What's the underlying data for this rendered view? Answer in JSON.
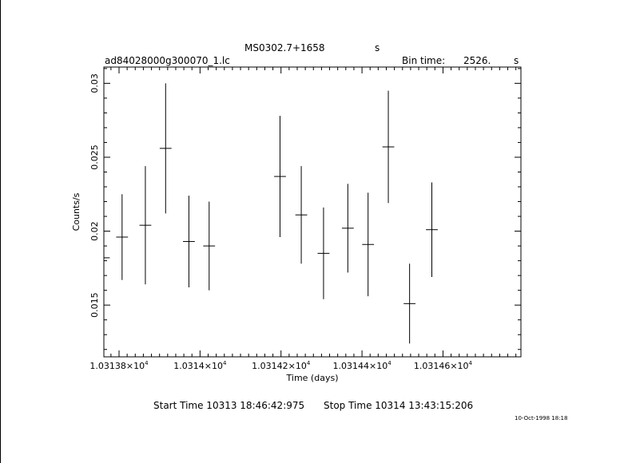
{
  "header": {
    "object": "MS0302.7+1658",
    "object_unit": "s",
    "file": "ad84028000g300070_1.lc",
    "bin_label": "Bin time:",
    "bin_value": "2526.",
    "bin_unit": "s"
  },
  "footer": {
    "start": "Start Time 10313  18:46:42:975",
    "stop": "Stop Time 10314  13:43:15:206",
    "stamp": "10-Oct-1998 18:18"
  },
  "chart_data": {
    "type": "scatter",
    "title": "MS0302.7+1658",
    "xlabel": "Time (days)",
    "ylabel": "Counts/s",
    "xlim": [
      10313.7625,
      10314.7925
    ],
    "ylim": [
      0.0115,
      0.0311
    ],
    "x_ticks_major": [
      10313.8,
      10314.0,
      10314.2,
      10314.4,
      10314.6
    ],
    "x_tick_labels": [
      {
        "mantissa": "1.03138",
        "exp": "4"
      },
      {
        "mantissa": "1.0314",
        "exp": "4"
      },
      {
        "mantissa": "1.03142",
        "exp": "4"
      },
      {
        "mantissa": "1.03144",
        "exp": "4"
      },
      {
        "mantissa": "1.03146",
        "exp": "4"
      }
    ],
    "y_ticks_major": [
      0.015,
      0.02,
      0.025,
      0.03
    ],
    "y_tick_labels": [
      "0.015",
      "0.02",
      "0.025",
      "0.03"
    ],
    "series": [
      {
        "points": [
          {
            "x": 10313.7625,
            "xerr": 0.0146,
            "y": 0.0182,
            "yerr": 0.0028
          },
          {
            "x": 10313.8075,
            "xerr": 0.0146,
            "y": 0.0196,
            "yerr": 0.0029
          },
          {
            "x": 10313.865,
            "xerr": 0.0146,
            "y": 0.0204,
            "yerr": 0.004
          },
          {
            "x": 10313.915,
            "xerr": 0.0146,
            "y": 0.0256,
            "yerr": 0.0044
          },
          {
            "x": 10313.9725,
            "xerr": 0.0146,
            "y": 0.0193,
            "yerr": 0.0031
          },
          {
            "x": 10314.0225,
            "xerr": 0.0146,
            "y": 0.019,
            "yerr": 0.003
          },
          {
            "x": 10314.1975,
            "xerr": 0.0146,
            "y": 0.0237,
            "yerr": 0.0041
          },
          {
            "x": 10314.25,
            "xerr": 0.0146,
            "y": 0.0211,
            "yerr": 0.0033
          },
          {
            "x": 10314.305,
            "xerr": 0.0146,
            "y": 0.0185,
            "yerr": 0.0031
          },
          {
            "x": 10314.365,
            "xerr": 0.0146,
            "y": 0.0202,
            "yerr": 0.003
          },
          {
            "x": 10314.415,
            "xerr": 0.0146,
            "y": 0.0191,
            "yerr": 0.0035
          },
          {
            "x": 10314.465,
            "xerr": 0.0146,
            "y": 0.0257,
            "yerr": 0.0038
          },
          {
            "x": 10314.5175,
            "xerr": 0.0146,
            "y": 0.0151,
            "yerr": 0.0027
          },
          {
            "x": 10314.5725,
            "xerr": 0.0146,
            "y": 0.0201,
            "yerr": 0.0032
          }
        ]
      }
    ]
  }
}
